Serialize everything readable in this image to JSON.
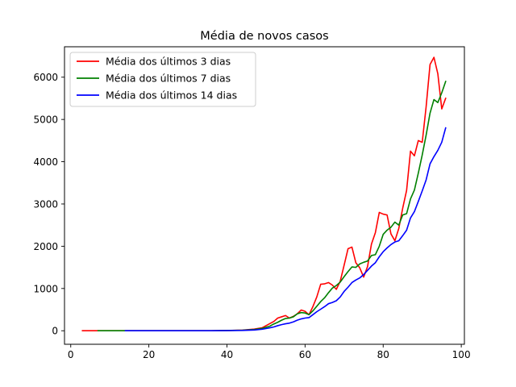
{
  "chart_data": {
    "type": "line",
    "title": "Média de novos casos",
    "xlabel": "",
    "ylabel": "",
    "xlim": [
      -1.6,
      100.8
    ],
    "ylim": [
      -320,
      6720
    ],
    "xticks": [
      0,
      20,
      40,
      60,
      80,
      100
    ],
    "yticks": [
      0,
      1000,
      2000,
      3000,
      4000,
      5000,
      6000
    ],
    "grid": false,
    "legend": "top-left",
    "series": [
      {
        "name": "Média dos últimos 3 dias",
        "color": "#ff0000",
        "points": [
          [
            3,
            0
          ],
          [
            10,
            0
          ],
          [
            20,
            0
          ],
          [
            30,
            0
          ],
          [
            36,
            2
          ],
          [
            40,
            5
          ],
          [
            44,
            15
          ],
          [
            47,
            40
          ],
          [
            49,
            70
          ],
          [
            51,
            170
          ],
          [
            52,
            220
          ],
          [
            53,
            300
          ],
          [
            54,
            330
          ],
          [
            55,
            360
          ],
          [
            56,
            300
          ],
          [
            57,
            340
          ],
          [
            58,
            400
          ],
          [
            59,
            490
          ],
          [
            60,
            460
          ],
          [
            61,
            380
          ],
          [
            62,
            570
          ],
          [
            63,
            800
          ],
          [
            64,
            1100
          ],
          [
            65,
            1110
          ],
          [
            66,
            1140
          ],
          [
            67,
            1080
          ],
          [
            68,
            980
          ],
          [
            69,
            1170
          ],
          [
            70,
            1550
          ],
          [
            71,
            1940
          ],
          [
            72,
            1980
          ],
          [
            73,
            1610
          ],
          [
            74,
            1490
          ],
          [
            75,
            1270
          ],
          [
            76,
            1520
          ],
          [
            77,
            2050
          ],
          [
            78,
            2320
          ],
          [
            79,
            2800
          ],
          [
            80,
            2760
          ],
          [
            81,
            2740
          ],
          [
            82,
            2290
          ],
          [
            83,
            2130
          ],
          [
            84,
            2420
          ],
          [
            85,
            2900
          ],
          [
            86,
            3320
          ],
          [
            87,
            4250
          ],
          [
            88,
            4140
          ],
          [
            89,
            4500
          ],
          [
            90,
            4460
          ],
          [
            91,
            5300
          ],
          [
            92,
            6300
          ],
          [
            93,
            6470
          ],
          [
            94,
            6080
          ],
          [
            95,
            5250
          ],
          [
            96,
            5500
          ]
        ]
      },
      {
        "name": "Média dos últimos 7 dias",
        "color": "#008000",
        "points": [
          [
            7,
            0
          ],
          [
            20,
            0
          ],
          [
            30,
            0
          ],
          [
            36,
            2
          ],
          [
            40,
            5
          ],
          [
            44,
            12
          ],
          [
            47,
            30
          ],
          [
            49,
            55
          ],
          [
            51,
            110
          ],
          [
            52,
            160
          ],
          [
            53,
            200
          ],
          [
            54,
            250
          ],
          [
            55,
            290
          ],
          [
            56,
            300
          ],
          [
            57,
            330
          ],
          [
            58,
            400
          ],
          [
            59,
            430
          ],
          [
            60,
            420
          ],
          [
            61,
            380
          ],
          [
            62,
            470
          ],
          [
            63,
            580
          ],
          [
            64,
            690
          ],
          [
            65,
            780
          ],
          [
            66,
            900
          ],
          [
            67,
            1010
          ],
          [
            68,
            1070
          ],
          [
            69,
            1150
          ],
          [
            70,
            1280
          ],
          [
            71,
            1400
          ],
          [
            72,
            1510
          ],
          [
            73,
            1500
          ],
          [
            74,
            1580
          ],
          [
            75,
            1620
          ],
          [
            76,
            1650
          ],
          [
            77,
            1780
          ],
          [
            78,
            1800
          ],
          [
            79,
            2000
          ],
          [
            80,
            2280
          ],
          [
            81,
            2380
          ],
          [
            82,
            2450
          ],
          [
            83,
            2570
          ],
          [
            84,
            2500
          ],
          [
            85,
            2740
          ],
          [
            86,
            2770
          ],
          [
            87,
            3120
          ],
          [
            88,
            3330
          ],
          [
            89,
            3730
          ],
          [
            90,
            4160
          ],
          [
            91,
            4630
          ],
          [
            92,
            5150
          ],
          [
            93,
            5470
          ],
          [
            94,
            5400
          ],
          [
            95,
            5630
          ],
          [
            96,
            5900
          ]
        ]
      },
      {
        "name": "Média dos últimos 14 dias",
        "color": "#0000ff",
        "points": [
          [
            14,
            0
          ],
          [
            20,
            0
          ],
          [
            30,
            0
          ],
          [
            36,
            1
          ],
          [
            40,
            3
          ],
          [
            44,
            8
          ],
          [
            47,
            18
          ],
          [
            49,
            35
          ],
          [
            51,
            70
          ],
          [
            52,
            90
          ],
          [
            53,
            120
          ],
          [
            54,
            145
          ],
          [
            55,
            165
          ],
          [
            56,
            180
          ],
          [
            57,
            210
          ],
          [
            58,
            250
          ],
          [
            59,
            280
          ],
          [
            60,
            300
          ],
          [
            61,
            310
          ],
          [
            62,
            380
          ],
          [
            63,
            450
          ],
          [
            64,
            510
          ],
          [
            65,
            570
          ],
          [
            66,
            640
          ],
          [
            67,
            670
          ],
          [
            68,
            710
          ],
          [
            69,
            800
          ],
          [
            70,
            930
          ],
          [
            71,
            1030
          ],
          [
            72,
            1140
          ],
          [
            73,
            1200
          ],
          [
            74,
            1250
          ],
          [
            75,
            1330
          ],
          [
            76,
            1430
          ],
          [
            77,
            1530
          ],
          [
            78,
            1610
          ],
          [
            79,
            1750
          ],
          [
            80,
            1870
          ],
          [
            81,
            1960
          ],
          [
            82,
            2040
          ],
          [
            83,
            2100
          ],
          [
            84,
            2130
          ],
          [
            85,
            2250
          ],
          [
            86,
            2380
          ],
          [
            87,
            2670
          ],
          [
            88,
            2820
          ],
          [
            89,
            3060
          ],
          [
            90,
            3310
          ],
          [
            91,
            3570
          ],
          [
            92,
            3950
          ],
          [
            93,
            4120
          ],
          [
            94,
            4270
          ],
          [
            95,
            4460
          ],
          [
            96,
            4800
          ]
        ]
      }
    ]
  }
}
